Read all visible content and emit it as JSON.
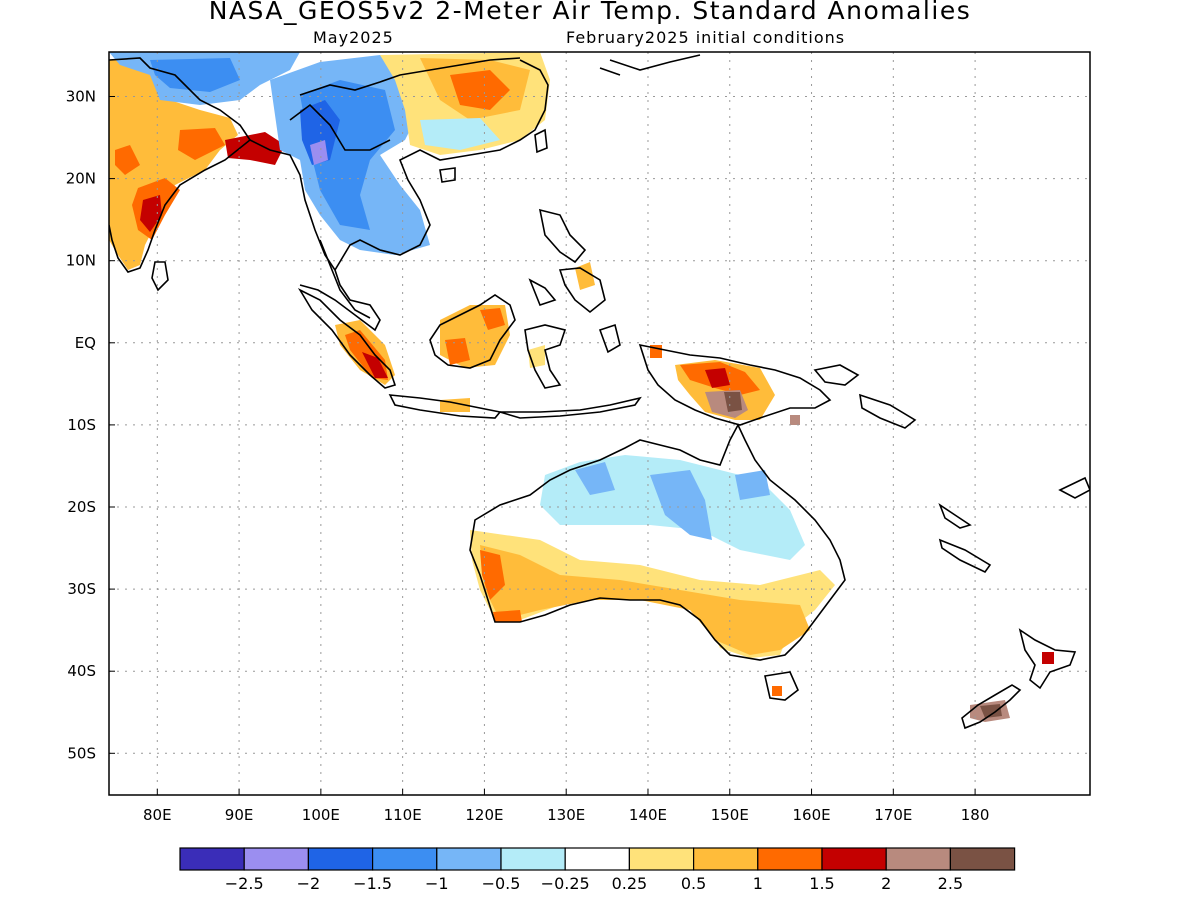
{
  "title": "NASA_GEOS5v2 2-Meter Air Temp. Standard Anomalies",
  "subtitle_left": "May2025",
  "subtitle_right": "February2025 initial conditions",
  "lat_labels": [
    "30N",
    "20N",
    "10N",
    "EQ",
    "10S",
    "20S",
    "30S",
    "40S",
    "50S"
  ],
  "lon_labels": [
    "80E",
    "90E",
    "100E",
    "110E",
    "120E",
    "130E",
    "140E",
    "150E",
    "160E",
    "170E",
    "180"
  ],
  "colorbar": {
    "colors": [
      "#3a2db8",
      "#9b8ef0",
      "#1f64e6",
      "#3c8ef2",
      "#76b6f7",
      "#b4ecf8",
      "#ffffff",
      "#ffe27a",
      "#ffbc3a",
      "#ff6a00",
      "#c40000",
      "#b88a7e",
      "#7a5244"
    ],
    "labels": [
      "−2.5",
      "−2",
      "−1.5",
      "−1",
      "−0.5",
      "−0.25",
      "0.25",
      "0.5",
      "1",
      "1.5",
      "2",
      "2.5"
    ]
  },
  "colors": {
    "coast": "#000000",
    "grid": "#999999"
  }
}
